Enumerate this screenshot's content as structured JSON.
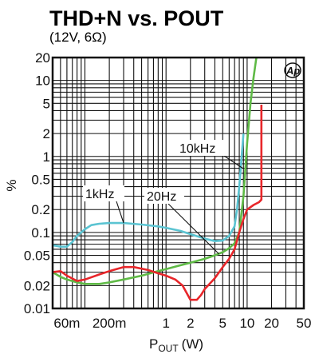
{
  "chart_data": {
    "type": "line",
    "title": "THD+N vs. POUT",
    "subtitle": "(12V, 6Ω)",
    "xlabel_main": "P",
    "xlabel_sub": "OUT",
    "xlabel_unit": "(W)",
    "ylabel": "%",
    "x_scale": "log",
    "y_scale": "log",
    "xlim": [
      0.04,
      50
    ],
    "ylim": [
      0.01,
      20
    ],
    "grid": true,
    "x_ticks": [
      {
        "v": 0.06,
        "label": "60m"
      },
      {
        "v": 0.2,
        "label": "200m"
      },
      {
        "v": 1,
        "label": "1"
      },
      {
        "v": 2,
        "label": "2"
      },
      {
        "v": 5,
        "label": "5"
      },
      {
        "v": 10,
        "label": "10"
      },
      {
        "v": 20,
        "label": "20"
      },
      {
        "v": 50,
        "label": "50"
      }
    ],
    "y_ticks": [
      {
        "v": 20,
        "label": "20"
      },
      {
        "v": 10,
        "label": "10"
      },
      {
        "v": 5,
        "label": "5"
      },
      {
        "v": 2,
        "label": "2"
      },
      {
        "v": 1,
        "label": "1"
      },
      {
        "v": 0.5,
        "label": "0.5"
      },
      {
        "v": 0.2,
        "label": "0.2"
      },
      {
        "v": 0.1,
        "label": "0.1"
      },
      {
        "v": 0.05,
        "label": "0.05"
      },
      {
        "v": 0.02,
        "label": "0.02"
      },
      {
        "v": 0.01,
        "label": "0.01"
      }
    ],
    "series": [
      {
        "name": "1kHz",
        "color": "#5bc4d2",
        "points": [
          [
            0.04,
            0.068
          ],
          [
            0.05,
            0.065
          ],
          [
            0.06,
            0.065
          ],
          [
            0.07,
            0.075
          ],
          [
            0.08,
            0.09
          ],
          [
            0.1,
            0.11
          ],
          [
            0.12,
            0.125
          ],
          [
            0.15,
            0.13
          ],
          [
            0.2,
            0.133
          ],
          [
            0.3,
            0.133
          ],
          [
            0.5,
            0.127
          ],
          [
            0.8,
            0.12
          ],
          [
            1,
            0.115
          ],
          [
            1.5,
            0.105
          ],
          [
            2,
            0.095
          ],
          [
            3,
            0.083
          ],
          [
            4,
            0.077
          ],
          [
            5,
            0.078
          ],
          [
            6,
            0.09
          ],
          [
            7,
            0.12
          ],
          [
            7.5,
            0.2
          ],
          [
            8,
            0.4
          ],
          [
            8.5,
            0.9
          ],
          [
            9,
            2
          ]
        ]
      },
      {
        "name": "20Hz",
        "color": "#5fba46",
        "points": [
          [
            0.04,
            0.03
          ],
          [
            0.05,
            0.026
          ],
          [
            0.06,
            0.024
          ],
          [
            0.08,
            0.022
          ],
          [
            0.1,
            0.021
          ],
          [
            0.15,
            0.021
          ],
          [
            0.2,
            0.022
          ],
          [
            0.3,
            0.024
          ],
          [
            0.5,
            0.027
          ],
          [
            0.8,
            0.031
          ],
          [
            1,
            0.033
          ],
          [
            1.5,
            0.037
          ],
          [
            2,
            0.04
          ],
          [
            3,
            0.045
          ],
          [
            4,
            0.05
          ],
          [
            5,
            0.055
          ],
          [
            6,
            0.062
          ],
          [
            7,
            0.072
          ],
          [
            8,
            0.1
          ],
          [
            9,
            0.3
          ],
          [
            10,
            1.5
          ],
          [
            11,
            5
          ],
          [
            12,
            11
          ],
          [
            13,
            20
          ]
        ]
      },
      {
        "name": "10kHz",
        "color": "#e8262a",
        "points": [
          [
            0.04,
            0.03
          ],
          [
            0.05,
            0.031
          ],
          [
            0.06,
            0.027
          ],
          [
            0.08,
            0.023
          ],
          [
            0.1,
            0.024
          ],
          [
            0.15,
            0.028
          ],
          [
            0.2,
            0.031
          ],
          [
            0.3,
            0.035
          ],
          [
            0.4,
            0.035
          ],
          [
            0.6,
            0.032
          ],
          [
            0.8,
            0.029
          ],
          [
            1,
            0.027
          ],
          [
            1.3,
            0.024
          ],
          [
            1.6,
            0.02
          ],
          [
            2,
            0.013
          ],
          [
            2.4,
            0.013
          ],
          [
            2.7,
            0.015
          ],
          [
            3,
            0.018
          ],
          [
            4,
            0.025
          ],
          [
            5,
            0.035
          ],
          [
            6,
            0.045
          ],
          [
            7,
            0.06
          ],
          [
            8,
            0.1
          ],
          [
            9,
            0.15
          ],
          [
            10,
            0.2
          ],
          [
            12,
            0.23
          ],
          [
            14,
            0.25
          ],
          [
            15,
            0.27
          ],
          [
            15,
            4.8
          ]
        ]
      }
    ],
    "annotations": [
      {
        "text": "1kHz",
        "series": "1kHz",
        "at": [
          0.3,
          0.133
        ]
      },
      {
        "text": "20Hz",
        "series": "20Hz",
        "at": [
          4.5,
          0.052
        ]
      },
      {
        "text": "10kHz",
        "series": "10kHz",
        "at": [
          8.8,
          0.7
        ]
      }
    ]
  }
}
